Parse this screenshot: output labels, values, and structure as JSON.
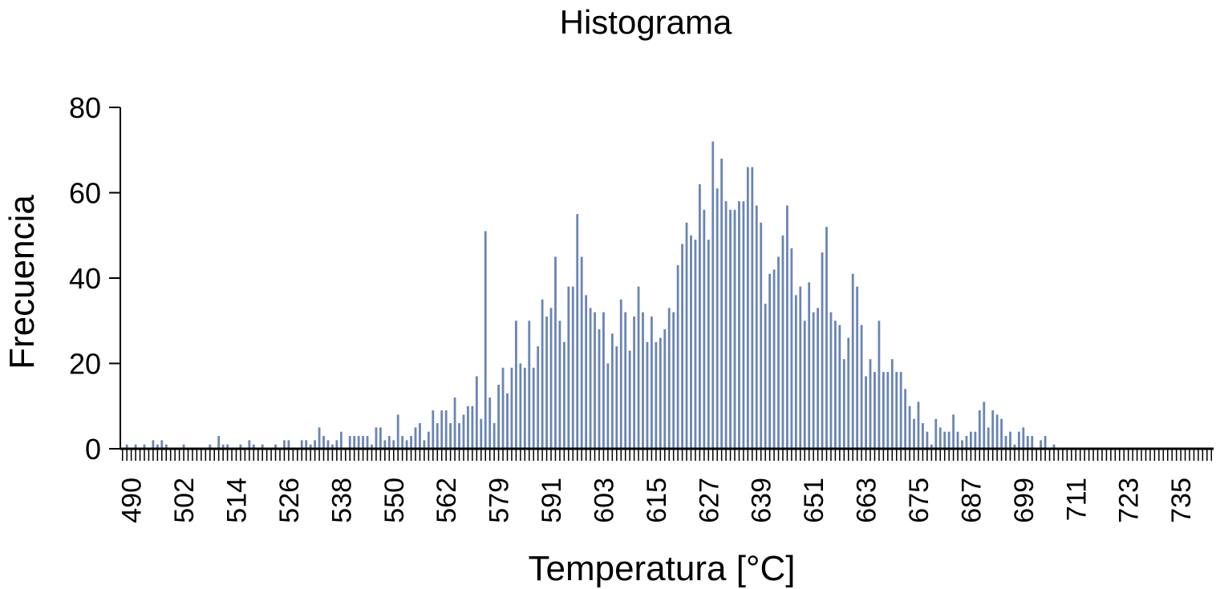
{
  "chart_data": {
    "type": "bar",
    "title": "Histograma",
    "x_label": "Temperatura [°C]",
    "y_label": "Frecuencia",
    "color": "#6a85b6",
    "categories": [
      null,
      null,
      490,
      null,
      null,
      null,
      null,
      null,
      null,
      null,
      null,
      null,
      null,
      null,
      502,
      null,
      null,
      null,
      null,
      null,
      null,
      null,
      null,
      null,
      null,
      null,
      514,
      null,
      null,
      null,
      null,
      null,
      null,
      null,
      null,
      null,
      null,
      null,
      526,
      null,
      null,
      null,
      null,
      null,
      null,
      null,
      null,
      null,
      null,
      null,
      538,
      null,
      null,
      null,
      null,
      null,
      null,
      null,
      null,
      null,
      null,
      null,
      550,
      null,
      null,
      null,
      null,
      null,
      null,
      null,
      null,
      null,
      null,
      null,
      562,
      null,
      null,
      null,
      null,
      null,
      null,
      null,
      null,
      null,
      null,
      null,
      579,
      null,
      null,
      null,
      null,
      null,
      null,
      null,
      null,
      null,
      null,
      null,
      591,
      null,
      null,
      null,
      null,
      null,
      null,
      null,
      null,
      null,
      null,
      null,
      603,
      null,
      null,
      null,
      null,
      null,
      null,
      null,
      null,
      null,
      null,
      null,
      615,
      null,
      null,
      null,
      null,
      null,
      null,
      null,
      null,
      null,
      null,
      null,
      627,
      null,
      null,
      null,
      null,
      null,
      null,
      null,
      null,
      null,
      null,
      null,
      639,
      null,
      null,
      null,
      null,
      null,
      null,
      null,
      null,
      null,
      null,
      null,
      651,
      null,
      null,
      null,
      null,
      null,
      null,
      null,
      null,
      null,
      null,
      null,
      663,
      null,
      null,
      null,
      null,
      null,
      null,
      null,
      null,
      null,
      null,
      null,
      675,
      null,
      null,
      null,
      null,
      null,
      null,
      null,
      null,
      null,
      null,
      null,
      687,
      null,
      null,
      null,
      null,
      null,
      null,
      null,
      null,
      null,
      null,
      null,
      699,
      null,
      null,
      null,
      null,
      null,
      null,
      null,
      null,
      null,
      null,
      null,
      711,
      null,
      null,
      null,
      null,
      null,
      null,
      null,
      null,
      null,
      null,
      null,
      723,
      null,
      null,
      null,
      null,
      null,
      null,
      null,
      null,
      null,
      null,
      null,
      735,
      null,
      null,
      null,
      null,
      null,
      null,
      null
    ],
    "values": [
      0,
      1,
      0,
      1,
      0,
      1,
      0,
      2,
      1,
      2,
      1,
      0,
      0,
      0,
      1,
      0,
      0,
      0,
      0,
      0,
      1,
      0,
      3,
      1,
      1,
      0,
      0,
      1,
      0,
      2,
      1,
      0,
      1,
      0,
      0,
      1,
      0,
      2,
      2,
      0,
      0,
      2,
      2,
      1,
      2,
      5,
      3,
      2,
      1,
      2,
      4,
      0,
      3,
      3,
      3,
      3,
      3,
      1,
      5,
      5,
      2,
      3,
      2,
      8,
      3,
      2,
      3,
      5,
      6,
      2,
      4,
      9,
      6,
      9,
      9,
      6,
      12,
      6,
      8,
      10,
      10,
      17,
      7,
      51,
      12,
      6,
      15,
      19,
      13,
      19,
      30,
      20,
      19,
      30,
      19,
      24,
      35,
      31,
      33,
      45,
      30,
      25,
      38,
      38,
      55,
      45,
      36,
      33,
      32,
      28,
      32,
      20,
      27,
      24,
      35,
      32,
      23,
      31,
      38,
      32,
      25,
      31,
      25,
      26,
      28,
      33,
      32,
      43,
      48,
      53,
      50,
      49,
      62,
      56,
      49,
      72,
      61,
      68,
      58,
      56,
      56,
      58,
      58,
      66,
      66,
      57,
      53,
      34,
      41,
      42,
      45,
      50,
      57,
      47,
      36,
      38,
      30,
      39,
      32,
      33,
      46,
      52,
      32,
      30,
      29,
      21,
      26,
      41,
      38,
      29,
      17,
      21,
      18,
      30,
      18,
      18,
      21,
      18,
      18,
      14,
      10,
      7,
      11,
      6,
      4,
      1,
      7,
      5,
      4,
      4,
      8,
      4,
      2,
      3,
      4,
      4,
      9,
      11,
      5,
      9,
      8,
      7,
      3,
      4,
      1,
      4,
      5,
      3,
      3,
      0,
      2,
      3,
      0,
      1,
      0,
      0,
      0,
      0,
      0,
      0,
      0,
      0,
      0,
      0,
      0,
      0,
      0,
      0,
      0,
      0,
      0,
      0,
      0,
      0,
      0,
      0,
      0,
      0,
      0,
      0,
      0,
      0,
      0,
      0,
      0,
      0,
      0,
      0,
      0,
      0
    ],
    "ylim": [
      0,
      80
    ],
    "yticks": [
      0,
      20,
      40,
      60,
      80
    ]
  }
}
